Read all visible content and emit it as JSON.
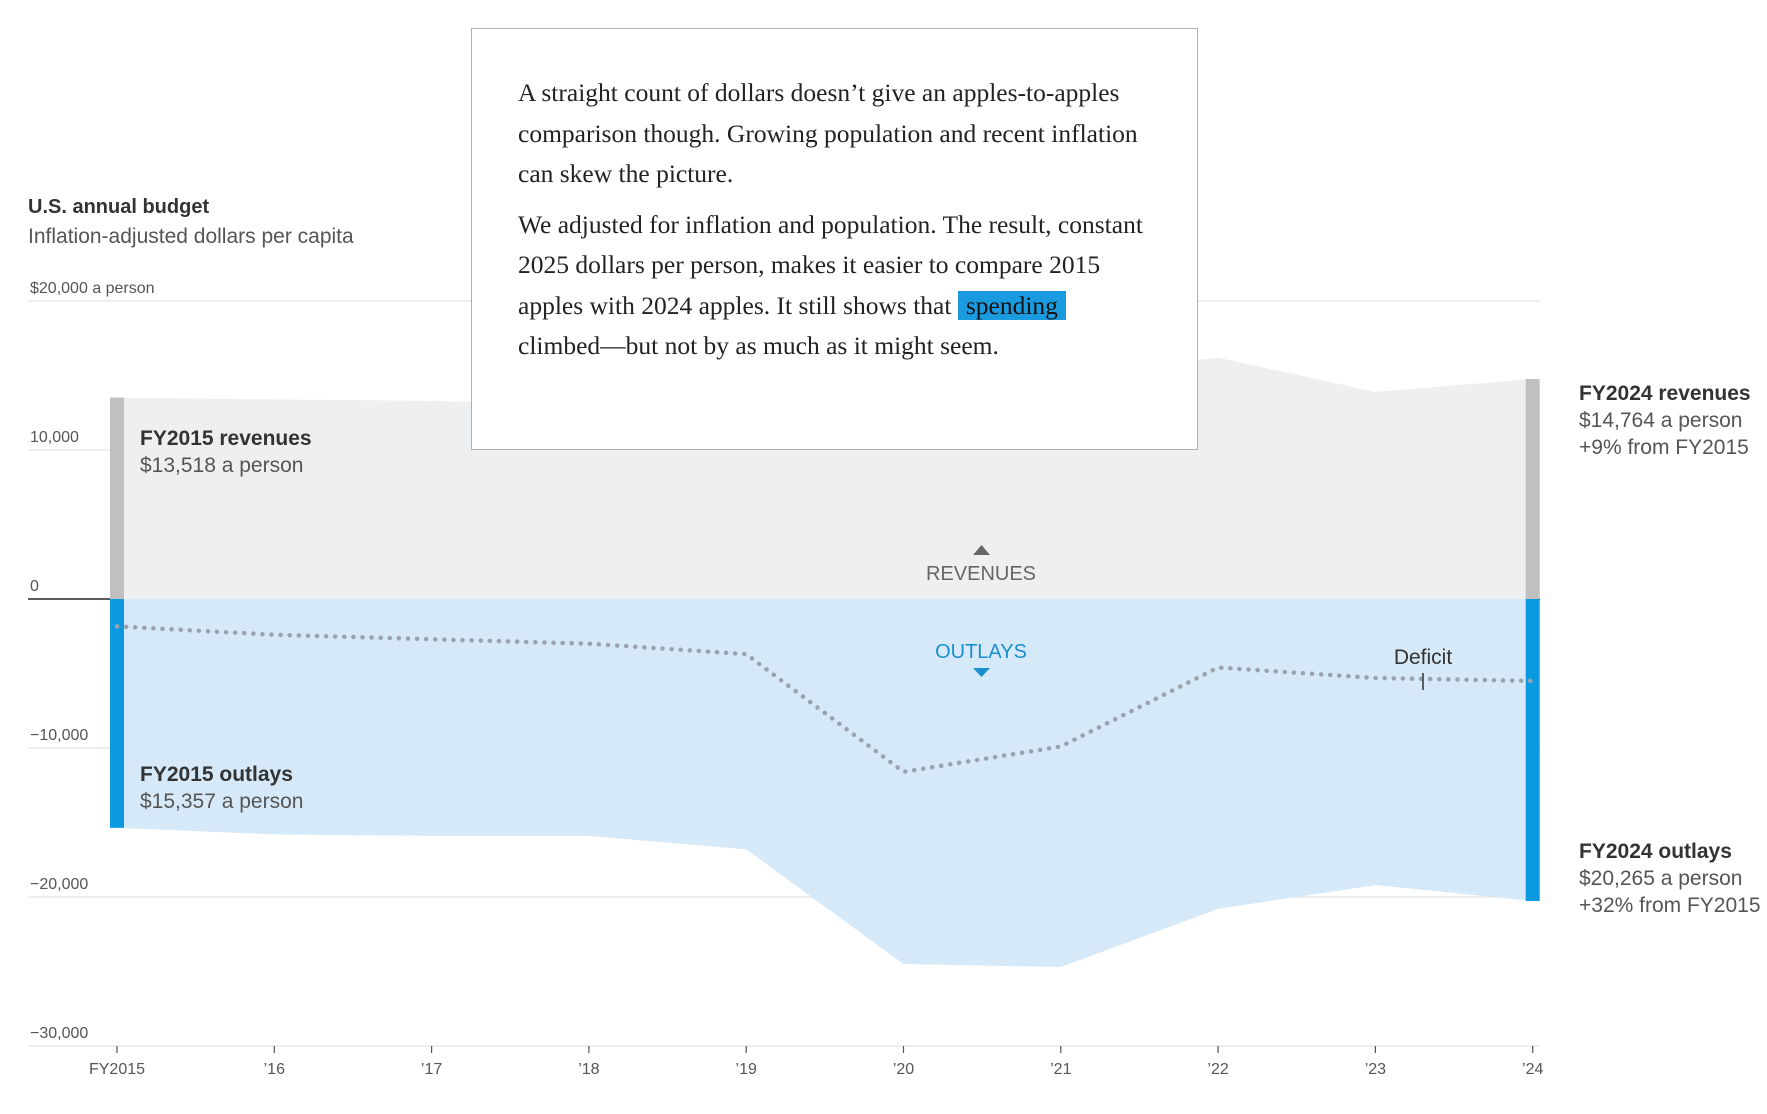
{
  "title": "U.S. annual budget",
  "subtitle": "Inflation-adjusted dollars per capita",
  "annotations": {
    "rev2015": {
      "head": "FY2015 revenues",
      "line1": "$13,518 a person"
    },
    "out2015": {
      "head": "FY2015 outlays",
      "line1": "$15,357 a person"
    },
    "rev2024": {
      "head": "FY2024 revenues",
      "line1": "$14,764 a person",
      "line2": "+9% from FY2015"
    },
    "out2024": {
      "head": "FY2024 outlays",
      "line1": "$20,265 a person",
      "line2": "+32% from FY2015"
    },
    "revenues_label": "REVENUES",
    "outlays_label": "OUTLAYS",
    "deficit_label": "Deficit"
  },
  "textbox": {
    "para1": "A straight count of dollars doesn’t give an apples-to-apples comparison though. Growing population and recent inflation can skew the picture.",
    "para2_before": "We adjusted for inflation and population. The result, constant 2025 dollars per person, makes it easier to compare 2015 apples with 2024 apples. It still shows that ",
    "para2_highlight": "spending",
    "para2_after": " climbed—but not by as much as it might seem."
  },
  "colors": {
    "revenue_fill": "#eeeff0",
    "revenue_bar": "#c0c0c0",
    "outlay_fill": "#d6e9f8",
    "outlay_bar": "#0b9ae0",
    "deficit_line": "#9aa3ad",
    "highlight": "#1a9be0"
  },
  "chart_data": {
    "type": "area",
    "x": [
      "FY2015",
      "’16",
      "’17",
      "’18",
      "’19",
      "’20",
      "’21",
      "’22",
      "’23",
      "’24"
    ],
    "y_ticks": [
      {
        "value": 20000,
        "label": "$20,000 a person"
      },
      {
        "value": 10000,
        "label": "10,000"
      },
      {
        "value": 0,
        "label": "0"
      },
      {
        "value": -10000,
        "label": "−10,000"
      },
      {
        "value": -20000,
        "label": "−20,000"
      },
      {
        "value": -30000,
        "label": "−30,000"
      }
    ],
    "ylim": [
      -30000,
      20000
    ],
    "grid": true,
    "series": [
      {
        "name": "REVENUES",
        "values": [
          13518,
          13400,
          13300,
          13000,
          13100,
          12900,
          15000,
          16200,
          13900,
          14764
        ]
      },
      {
        "name": "OUTLAYS",
        "values": [
          -15357,
          -15800,
          -15900,
          -15900,
          -16800,
          -24500,
          -24700,
          -20800,
          -19200,
          -20265
        ]
      },
      {
        "name": "Deficit",
        "values": [
          -1839,
          -2400,
          -2700,
          -3000,
          -3700,
          -11600,
          -9900,
          -4600,
          -5300,
          -5501
        ]
      }
    ]
  }
}
